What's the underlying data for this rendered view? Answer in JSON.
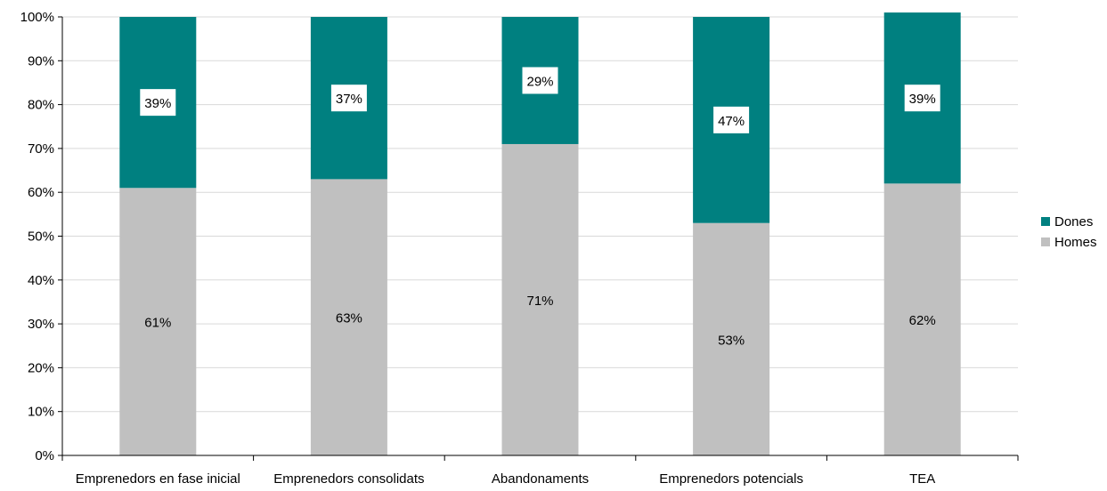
{
  "chart_data": {
    "type": "bar",
    "stacked": true,
    "percent": true,
    "categories": [
      "Emprenedors en fase inicial",
      "Emprenedors consolidats",
      "Abandonaments",
      "Emprenedors potencials",
      "TEA"
    ],
    "series": [
      {
        "name": "Homes",
        "values": [
          61,
          63,
          71,
          53,
          62
        ],
        "labels": [
          "61%",
          "63%",
          "71%",
          "53%",
          "62%"
        ],
        "color": "#c0c0c0"
      },
      {
        "name": "Dones",
        "values": [
          39,
          37,
          29,
          47,
          39
        ],
        "labels": [
          "39%",
          "37%",
          "29%",
          "47%",
          "39%"
        ],
        "color": "#008080"
      }
    ],
    "yticks": [
      "0%",
      "10%",
      "20%",
      "30%",
      "40%",
      "50%",
      "60%",
      "70%",
      "80%",
      "90%",
      "100%"
    ],
    "ylim": [
      0,
      100
    ],
    "grid": true,
    "legend_position": "right",
    "gridline_color": "#d9d9d9"
  }
}
